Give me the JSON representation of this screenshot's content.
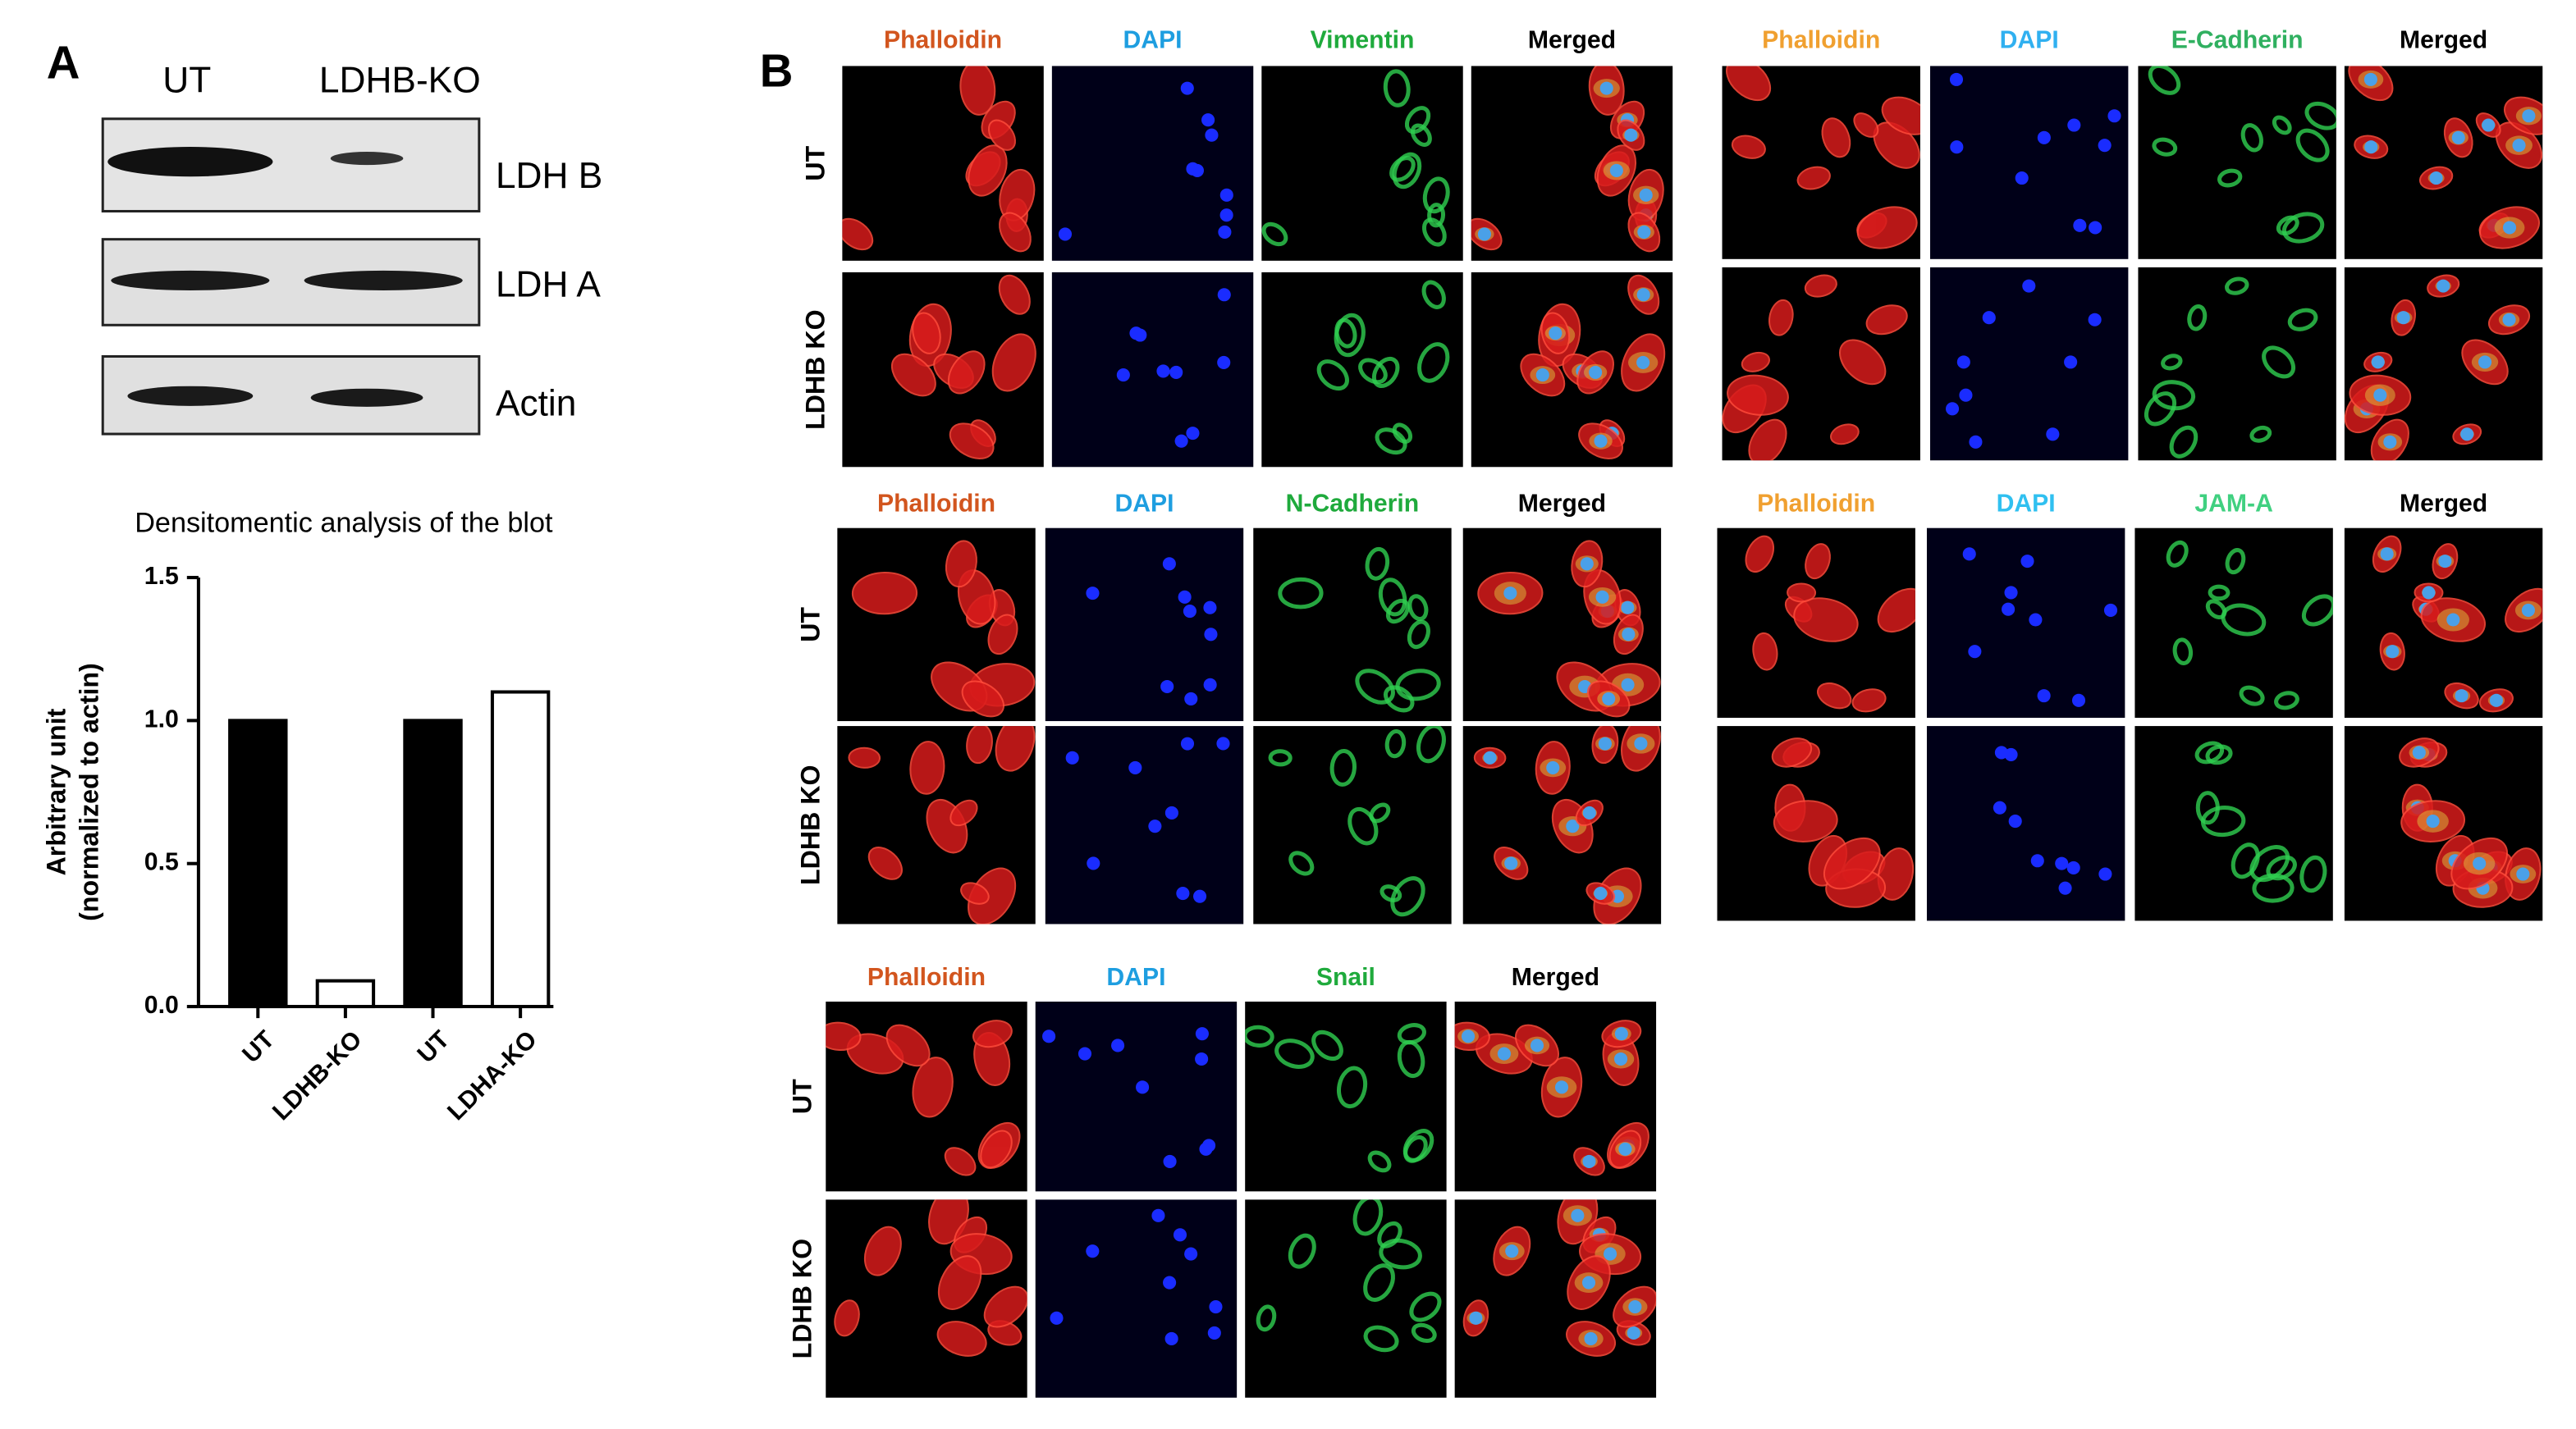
{
  "panel_a": {
    "label": "A",
    "lanes": [
      "UT",
      "LDHB-KO"
    ],
    "bands": [
      "LDH B",
      "LDH A",
      "Actin"
    ]
  },
  "chart_data": {
    "type": "bar",
    "title": "Densitomentic analysis of the blot",
    "y_label": [
      "Arbitrary unit",
      "(normalized to actin)"
    ],
    "categories": [
      "UT",
      "LDHB-KO",
      "UT",
      "LDHA-KO"
    ],
    "values": [
      1.0,
      0.09,
      1.0,
      1.1
    ],
    "colors": [
      "#000000",
      "#ffffff",
      "#000000",
      "#ffffff"
    ],
    "ylim": [
      0,
      1.5
    ],
    "yticks": [
      {
        "value": 0,
        "label": "0.0"
      },
      0.5,
      {
        "value": 1,
        "label": "1.0"
      },
      {
        "value": 1.5,
        "label": "1.5"
      }
    ]
  },
  "panel_b": {
    "label": "B",
    "blocks": [
      {
        "headers": [
          "Phalloidin",
          "DAPI",
          "Vimentin",
          "Merged"
        ],
        "header_colors": [
          "#d2551e",
          "#1e9ee0",
          "#1faa3c",
          "#000000"
        ],
        "rows": [
          "UT",
          "LDHB KO"
        ]
      },
      {
        "headers": [
          "Phalloidin",
          "DAPI",
          "E-Cadherin",
          "Merged"
        ],
        "header_colors": [
          "#f0a030",
          "#30b0f0",
          "#30b060",
          "#000000"
        ]
      },
      {
        "headers": [
          "Phalloidin",
          "DAPI",
          "N-Cadherin",
          "Merged"
        ],
        "header_colors": [
          "#d2551e",
          "#1e9ee0",
          "#1faa3c",
          "#000000"
        ],
        "rows": [
          "UT",
          "LDHB KO"
        ]
      },
      {
        "headers": [
          "Phalloidin",
          "DAPI",
          "JAM-A",
          "Merged"
        ],
        "header_colors": [
          "#f0a030",
          "#30c0f0",
          "#40d080",
          "#000000"
        ]
      },
      {
        "headers": [
          "Phalloidin",
          "DAPI",
          "Snail",
          "Merged"
        ],
        "header_colors": [
          "#d2551e",
          "#1e9ee0",
          "#1faa3c",
          "#000000"
        ],
        "rows": [
          "UT",
          "LDHB KO"
        ]
      }
    ]
  }
}
